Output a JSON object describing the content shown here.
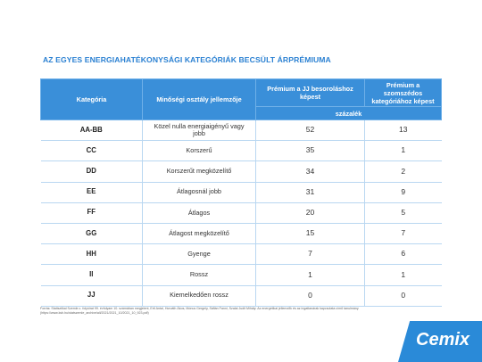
{
  "header": {
    "title": "AZ EGYES ENERGIAHATÉKONYSÁGI KATEGÓRIÁK BECSÜLT ÁRPRÉMIUMA"
  },
  "table": {
    "columns": [
      "Kategória",
      "Minőségi osztály jellemzője",
      "Prémium a JJ besoroláshoz képest",
      "Prémium a szomszédos kategóriához képest"
    ],
    "unit": "százalék",
    "rows": [
      [
        "AA-BB",
        "Közel nulla energiaigényű vagy jobb",
        52,
        13
      ],
      [
        "CC",
        "Korszerű",
        35,
        1
      ],
      [
        "DD",
        "Korszerűt megközelítő",
        34,
        2
      ],
      [
        "EE",
        "Átlagosnál jobb",
        31,
        9
      ],
      [
        "FF",
        "Átlagos",
        20,
        5
      ],
      [
        "GG",
        "Átlagost megközelítő",
        15,
        7
      ],
      [
        "HH",
        "Gyenge",
        7,
        6
      ],
      [
        "II",
        "Rossz",
        1,
        1
      ],
      [
        "JJ",
        "Kiemelkedően rossz",
        0,
        0
      ]
    ]
  },
  "footnote": [
    "Forrás: Statisztikai Szemle c. folyóirat 99. évfolyam 10. számában megjelent, Ertl Antal, Horváth Ákos, Mónus Gergely, Sáfián Fanni, Szalai Judit Mihály: Az energetikai jellemzők és az ingatlanárak kapcsolata című tanulmány",
    "(https://www.ksh.hu/statszemle_archive/all/2021/2021_10/2021_10_923.pdf)"
  ],
  "logo": "Cemix"
}
